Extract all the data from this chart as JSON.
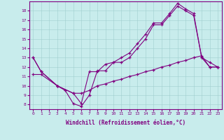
{
  "xlabel": "Windchill (Refroidissement éolien,°C)",
  "background_color": "#c8ecec",
  "line_color": "#800080",
  "xlim": [
    -0.5,
    23.5
  ],
  "ylim": [
    7.5,
    19.0
  ],
  "xticks": [
    0,
    1,
    2,
    3,
    4,
    5,
    6,
    7,
    8,
    9,
    10,
    11,
    12,
    13,
    14,
    15,
    16,
    17,
    18,
    19,
    20,
    21,
    22,
    23
  ],
  "yticks": [
    8,
    9,
    10,
    11,
    12,
    13,
    14,
    15,
    16,
    17,
    18
  ],
  "line1_x": [
    0,
    1,
    3,
    5,
    6,
    7,
    8,
    9,
    10,
    11,
    12,
    13,
    14,
    15,
    16,
    17,
    18,
    19,
    20,
    21,
    22,
    23
  ],
  "line1_y": [
    13,
    11.5,
    10.0,
    9.2,
    8.1,
    11.5,
    11.5,
    12.3,
    12.5,
    13.0,
    13.5,
    14.5,
    15.5,
    16.7,
    16.7,
    17.7,
    18.8,
    18.2,
    17.7,
    13.0,
    12.5,
    12.0
  ],
  "line2_x": [
    0,
    1,
    3,
    4,
    5,
    6,
    7,
    8,
    9,
    10,
    11,
    12,
    13,
    14,
    15,
    16,
    17,
    18,
    19,
    20,
    21,
    22,
    23
  ],
  "line2_y": [
    13,
    11.5,
    10.0,
    9.5,
    8.1,
    7.8,
    9.0,
    11.6,
    11.6,
    12.5,
    12.5,
    13.0,
    14.0,
    15.0,
    16.5,
    16.5,
    17.5,
    18.5,
    18.0,
    17.5,
    13.0,
    12.0,
    12.0
  ],
  "line3_x": [
    0,
    1,
    3,
    5,
    6,
    7,
    8,
    9,
    10,
    11,
    12,
    13,
    14,
    15,
    16,
    17,
    18,
    19,
    20,
    21,
    22,
    23
  ],
  "line3_y": [
    11.2,
    11.2,
    10.0,
    9.2,
    9.2,
    9.5,
    10.0,
    10.2,
    10.5,
    10.7,
    11.0,
    11.2,
    11.5,
    11.7,
    12.0,
    12.2,
    12.5,
    12.7,
    13.0,
    13.2,
    12.0,
    12.0
  ]
}
